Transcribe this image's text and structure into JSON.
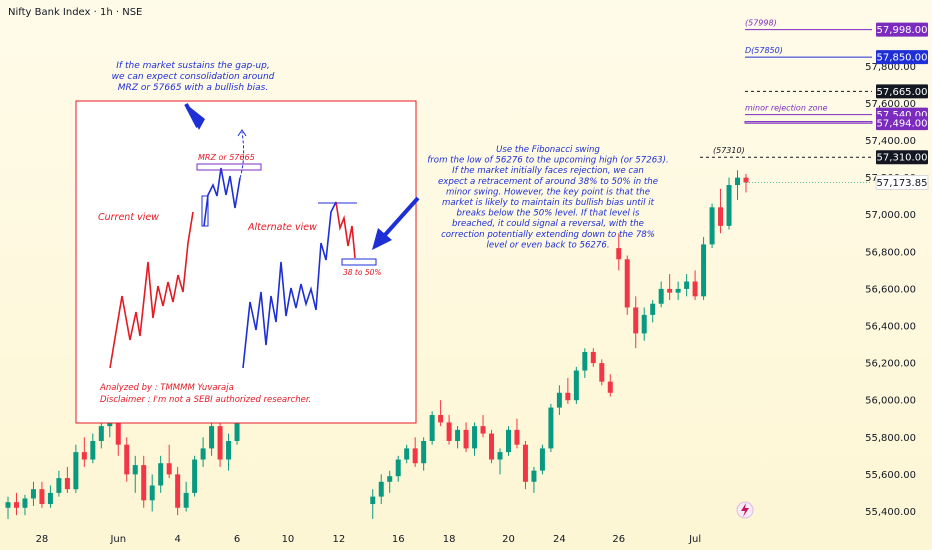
{
  "chart_data": {
    "type": "candlestick",
    "title": "Nifty Bank Index · 1h · NSE",
    "xlabel": "",
    "ylabel": "",
    "ylim": [
      55300,
      58050
    ],
    "y_ticks": [
      {
        "value": 55400,
        "label": "55,400.00"
      },
      {
        "value": 55600,
        "label": "55,600.00"
      },
      {
        "value": 55800,
        "label": "55,800.00"
      },
      {
        "value": 56000,
        "label": "56,000.00"
      },
      {
        "value": 56200,
        "label": "56,200.00"
      },
      {
        "value": 56400,
        "label": "56,400.00"
      },
      {
        "value": 56600,
        "label": "56,600.00"
      },
      {
        "value": 56800,
        "label": "56,800.00"
      },
      {
        "value": 57000,
        "label": "57,000.00"
      },
      {
        "value": 57200,
        "label": "57,200.00"
      },
      {
        "value": 57400,
        "label": "57,400.00"
      },
      {
        "value": 57600,
        "label": "57,600.00"
      },
      {
        "value": 57800,
        "label": "57,800.00"
      }
    ],
    "x_ticks": [
      {
        "index": 4,
        "label": "28"
      },
      {
        "index": 13,
        "label": "Jun"
      },
      {
        "index": 20,
        "label": "4"
      },
      {
        "index": 27,
        "label": "6"
      },
      {
        "index": 33,
        "label": "10"
      },
      {
        "index": 39,
        "label": "12"
      },
      {
        "index": 46,
        "label": "16"
      },
      {
        "index": 52,
        "label": "18"
      },
      {
        "index": 59,
        "label": "20"
      },
      {
        "index": 65,
        "label": "24"
      },
      {
        "index": 72,
        "label": "26"
      },
      {
        "index": 81,
        "label": "Jul"
      }
    ],
    "candles": [
      [
        55420,
        55480,
        55360,
        55450
      ],
      [
        55450,
        55500,
        55380,
        55420
      ],
      [
        55420,
        55490,
        55380,
        55470
      ],
      [
        55470,
        55560,
        55430,
        55520
      ],
      [
        55520,
        55560,
        55420,
        55440
      ],
      [
        55440,
        55540,
        55420,
        55500
      ],
      [
        55500,
        55620,
        55480,
        55580
      ],
      [
        55580,
        55640,
        55500,
        55520
      ],
      [
        55520,
        55760,
        55500,
        55720
      ],
      [
        55720,
        55800,
        55640,
        55680
      ],
      [
        55680,
        55820,
        55660,
        55780
      ],
      [
        55780,
        55900,
        55740,
        55860
      ],
      [
        55860,
        55980,
        55800,
        55920
      ],
      [
        55920,
        55940,
        55700,
        55760
      ],
      [
        55760,
        55800,
        55560,
        55600
      ],
      [
        55600,
        55700,
        55500,
        55650
      ],
      [
        55650,
        55700,
        55420,
        55460
      ],
      [
        55460,
        55600,
        55400,
        55540
      ],
      [
        55540,
        55700,
        55500,
        55660
      ],
      [
        55660,
        55760,
        55580,
        55600
      ],
      [
        55600,
        55640,
        55380,
        55420
      ],
      [
        55420,
        55560,
        55400,
        55500
      ],
      [
        55500,
        55700,
        55480,
        55680
      ],
      [
        55680,
        55800,
        55640,
        55740
      ],
      [
        55740,
        55900,
        55700,
        55860
      ],
      [
        55860,
        55880,
        55640,
        55680
      ],
      [
        55680,
        55820,
        55620,
        55780
      ],
      [
        55780,
        56000,
        55760,
        55960
      ],
      [
        55960,
        56120,
        55920,
        56080
      ],
      [
        56080,
        56160,
        56000,
        56040
      ],
      [
        56040,
        56140,
        55980,
        56100
      ],
      [
        56100,
        56200,
        56060,
        56160
      ],
      [
        56160,
        56240,
        56080,
        56120
      ],
      [
        56120,
        56180,
        55980,
        56020
      ],
      [
        56020,
        56080,
        55960,
        56060
      ],
      [
        56060,
        56100,
        55980,
        56000
      ],
      [
        56000,
        56020,
        55880,
        55920
      ],
      [
        55920,
        56000,
        55880,
        55960
      ],
      [
        55960,
        56020,
        55900,
        55940
      ],
      [
        55940,
        56060,
        55920,
        56040
      ],
      [
        56040,
        56080,
        55960,
        55980
      ],
      [
        55980,
        56000,
        55980,
        55980
      ],
      [
        55980,
        56050,
        55970,
        56010
      ],
      [
        55440,
        55520,
        55360,
        55480
      ],
      [
        55480,
        55600,
        55440,
        55560
      ],
      [
        55560,
        55620,
        55500,
        55590
      ],
      [
        55590,
        55700,
        55560,
        55680
      ],
      [
        55680,
        55760,
        55660,
        55740
      ],
      [
        55740,
        55800,
        55640,
        55660
      ],
      [
        55660,
        55800,
        55620,
        55780
      ],
      [
        55780,
        55940,
        55760,
        55920
      ],
      [
        55920,
        56000,
        55860,
        55880
      ],
      [
        55880,
        55920,
        55760,
        55780
      ],
      [
        55780,
        55860,
        55740,
        55840
      ],
      [
        55840,
        55880,
        55720,
        55740
      ],
      [
        55740,
        55880,
        55700,
        55860
      ],
      [
        55860,
        55920,
        55800,
        55820
      ],
      [
        55820,
        55840,
        55660,
        55680
      ],
      [
        55680,
        55740,
        55600,
        55720
      ],
      [
        55720,
        55860,
        55700,
        55840
      ],
      [
        55840,
        55900,
        55740,
        55760
      ],
      [
        55760,
        55780,
        55520,
        55560
      ],
      [
        55560,
        55640,
        55500,
        55620
      ],
      [
        55620,
        55760,
        55600,
        55740
      ],
      [
        55740,
        55980,
        55720,
        55960
      ],
      [
        55960,
        56080,
        55920,
        56040
      ],
      [
        56040,
        56120,
        55980,
        56000
      ],
      [
        56000,
        56180,
        55980,
        56160
      ],
      [
        56160,
        56280,
        56120,
        56260
      ],
      [
        56260,
        56280,
        56180,
        56200
      ],
      [
        56200,
        56220,
        56080,
        56100
      ],
      [
        56100,
        56140,
        56020,
        56040
      ],
      [
        56820,
        56900,
        56700,
        56760
      ],
      [
        56760,
        56780,
        56460,
        56500
      ],
      [
        56500,
        56560,
        56280,
        56360
      ],
      [
        56360,
        56500,
        56320,
        56460
      ],
      [
        56460,
        56540,
        56420,
        56520
      ],
      [
        56520,
        56640,
        56500,
        56600
      ],
      [
        56600,
        56680,
        56540,
        56580
      ],
      [
        56580,
        56640,
        56540,
        56600
      ],
      [
        56600,
        56680,
        56560,
        56640
      ],
      [
        56640,
        56700,
        56540,
        56560
      ],
      [
        56560,
        56880,
        56540,
        56840
      ],
      [
        56840,
        57060,
        56820,
        57040
      ],
      [
        57040,
        57140,
        56900,
        56940
      ],
      [
        56940,
        57200,
        56920,
        57160
      ],
      [
        57160,
        57240,
        57080,
        57200
      ],
      [
        57200,
        57220,
        57120,
        57174
      ]
    ],
    "series_notes": "candles are [open, high, low, close] hourly bars",
    "last_price": {
      "value": 57173.85,
      "label": "57,173.85"
    },
    "levels": [
      {
        "value": 57998,
        "tag": "(57998)",
        "label": "57,998.00",
        "color": "#7b2cbf",
        "style": "solid"
      },
      {
        "value": 57850,
        "tag": "D(57850)",
        "label": "57,850.00",
        "color": "#1e2fd6",
        "style": "solid"
      },
      {
        "value": 57665,
        "tag": "",
        "label": "57,665.00",
        "color": "#131722",
        "style": "dashed"
      },
      {
        "value": 57540,
        "tag": "minor rejection zone",
        "label": "57,540.00",
        "color": "#7b2cbf",
        "style": "solid"
      },
      {
        "value": 57494,
        "tag": "",
        "label": "57,494.00",
        "color": "#7b2cbf",
        "style": "solid"
      },
      {
        "value": 57310,
        "tag": "(57310)",
        "label": "57,310.00",
        "color": "#131722",
        "style": "dashed"
      }
    ],
    "annotation_main": [
      "Use the Fibonacci swing",
      "from the low of 56276 to the upcoming high (or 57263).",
      "If the market initially faces rejection, we can",
      "expect a retracement of around 38% to 50% in the",
      "minor swing. However, the key point is that the",
      "market is likely to maintain its bullish bias until it",
      "breaks below the 50% level. If that level is",
      "breached, it could signal a reversal, with the",
      "correction potentially extending down to the 78%",
      "level or even back to 56276."
    ],
    "annotation_top": [
      "If the market sustains the gap-up,",
      "we can expect consolidation around",
      "MRZ or 57665 with a bullish bias."
    ],
    "inset": {
      "current_view_label": "Current view",
      "alternate_view_label": "Alternate view",
      "mrz_label": "MRZ or 57665",
      "retrace_label": "38 to 50%",
      "analyzed_by": "Analyzed by : TMMMM Yuvaraja",
      "disclaimer": "Disclaimer : I'm not a SEBI authorized researcher."
    },
    "colors": {
      "up": "#089981",
      "down": "#f23645",
      "purple": "#7b2cbf",
      "blue": "#1e2fd6",
      "black": "#131722"
    }
  }
}
